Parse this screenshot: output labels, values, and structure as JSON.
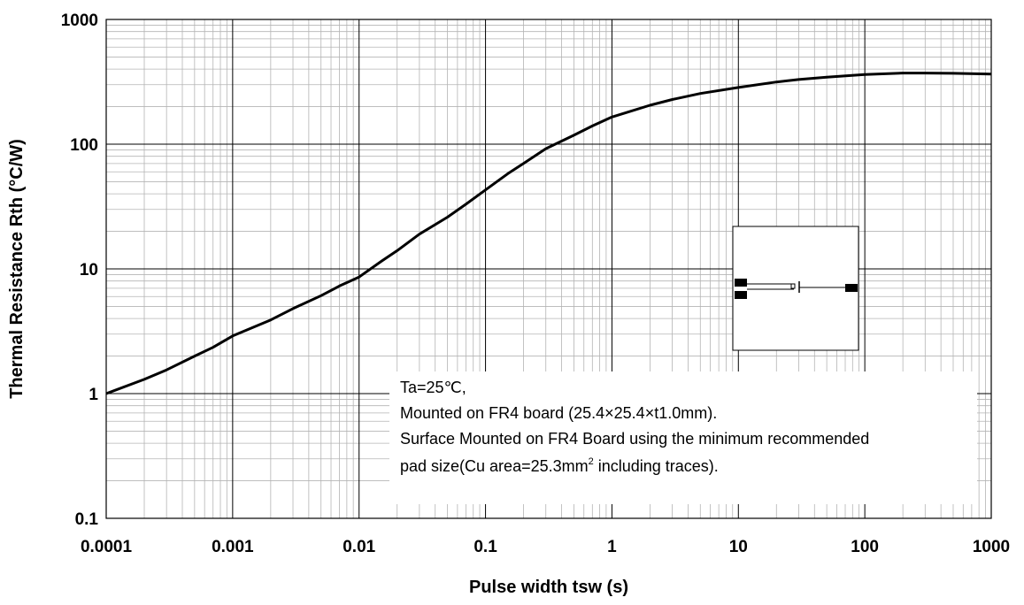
{
  "chart_data": {
    "type": "line",
    "xscale": "log",
    "yscale": "log",
    "xlim": [
      0.0001,
      1000
    ],
    "ylim": [
      0.1,
      1000
    ],
    "xlabel": "Pulse width tsw (s)",
    "ylabel": "Thermal Resistance Rth (°C/W)",
    "x_tick_labels": [
      "0.0001",
      "0.001",
      "0.01",
      "0.1",
      "1",
      "10",
      "100",
      "1000"
    ],
    "y_tick_labels": [
      "0.1",
      "1",
      "10",
      "100",
      "1000"
    ],
    "grid": true,
    "series": [
      {
        "x": [
          0.0001,
          0.0002,
          0.0003,
          0.0005,
          0.0007,
          0.001,
          0.002,
          0.003,
          0.005,
          0.007,
          0.01,
          0.015,
          0.02,
          0.03,
          0.05,
          0.07,
          0.1,
          0.15,
          0.2,
          0.3,
          0.5,
          0.7,
          1,
          2,
          3,
          5,
          10,
          20,
          30,
          50,
          100,
          200,
          300,
          500,
          1000
        ],
        "y": [
          1.0,
          1.3,
          1.55,
          2.0,
          2.35,
          2.9,
          3.9,
          4.8,
          6.1,
          7.3,
          8.6,
          11.5,
          14,
          19,
          26,
          33,
          43,
          58,
          70,
          92,
          118,
          140,
          165,
          205,
          228,
          255,
          285,
          315,
          330,
          345,
          362,
          372,
          372,
          370,
          365
        ]
      }
    ],
    "annotation": {
      "line1": "Ta=25℃,",
      "line2": "Mounted on FR4 board  (25.4×25.4×t1.0mm).",
      "line3": "Surface Mounted on FR4 Board using the minimum recommended",
      "line4a": "pad size(Cu area=25.3mm",
      "line4sup": "2",
      "line4b": " including traces)."
    }
  }
}
